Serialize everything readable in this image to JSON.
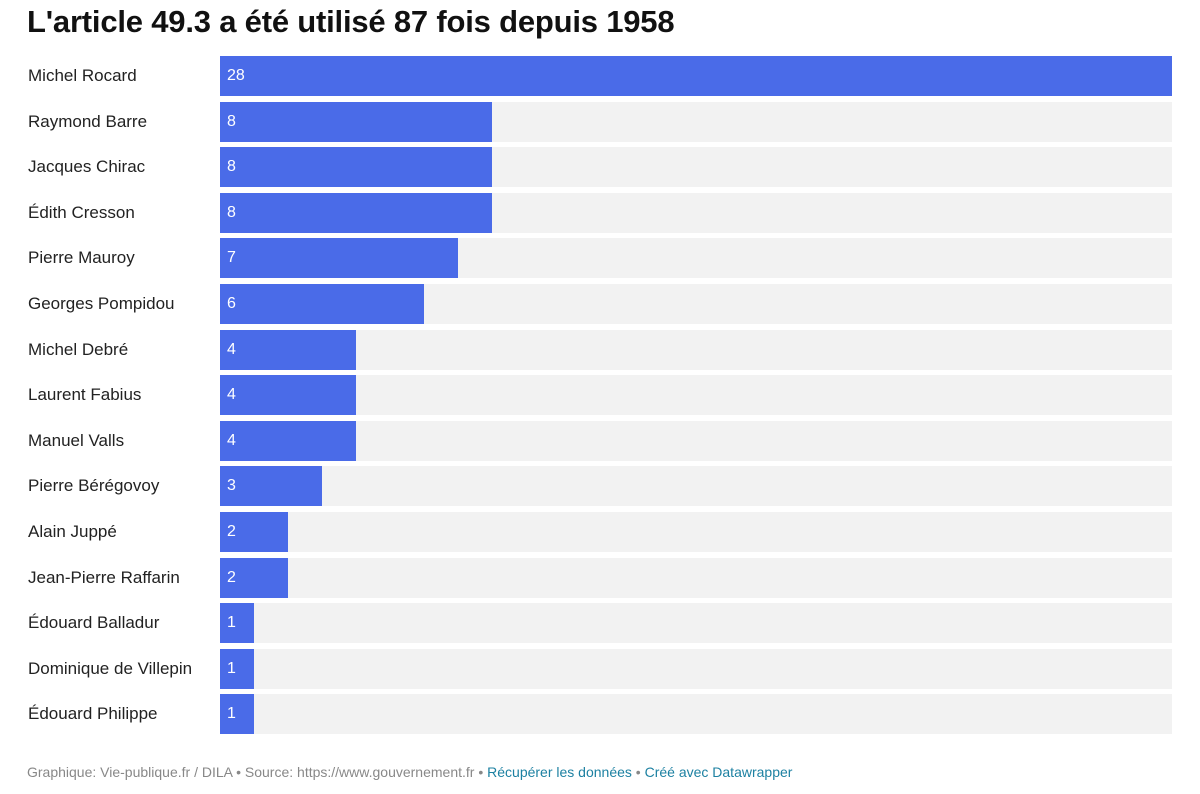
{
  "colors": {
    "bar": "#4a6be8",
    "track": "#f2f2f2",
    "link": "#1d81a2"
  },
  "footer": {
    "credit": "Graphique: Vie-publique.fr / DILA",
    "sep": " • ",
    "source": "Source: https://www.gouvernement.fr",
    "get_data": "Récupérer les données",
    "made_with": "Créé avec Datawrapper"
  },
  "chart_data": {
    "type": "bar",
    "orientation": "horizontal",
    "title": "L'article 49.3 a été utilisé 87 fois depuis 1958",
    "categories": [
      "Michel Rocard",
      "Raymond Barre",
      "Jacques Chirac",
      "Édith Cresson",
      "Pierre Mauroy",
      "Georges Pompidou",
      "Michel Debré",
      "Laurent Fabius",
      "Manuel Valls",
      "Pierre Bérégovoy",
      "Alain Juppé",
      "Jean-Pierre Raffarin",
      "Édouard Balladur",
      "Dominique de Villepin",
      "Édouard Philippe"
    ],
    "values": [
      28,
      8,
      8,
      8,
      7,
      6,
      4,
      4,
      4,
      3,
      2,
      2,
      1,
      1,
      1
    ],
    "xlim": [
      0,
      28
    ],
    "grid": false,
    "legend": "none"
  }
}
